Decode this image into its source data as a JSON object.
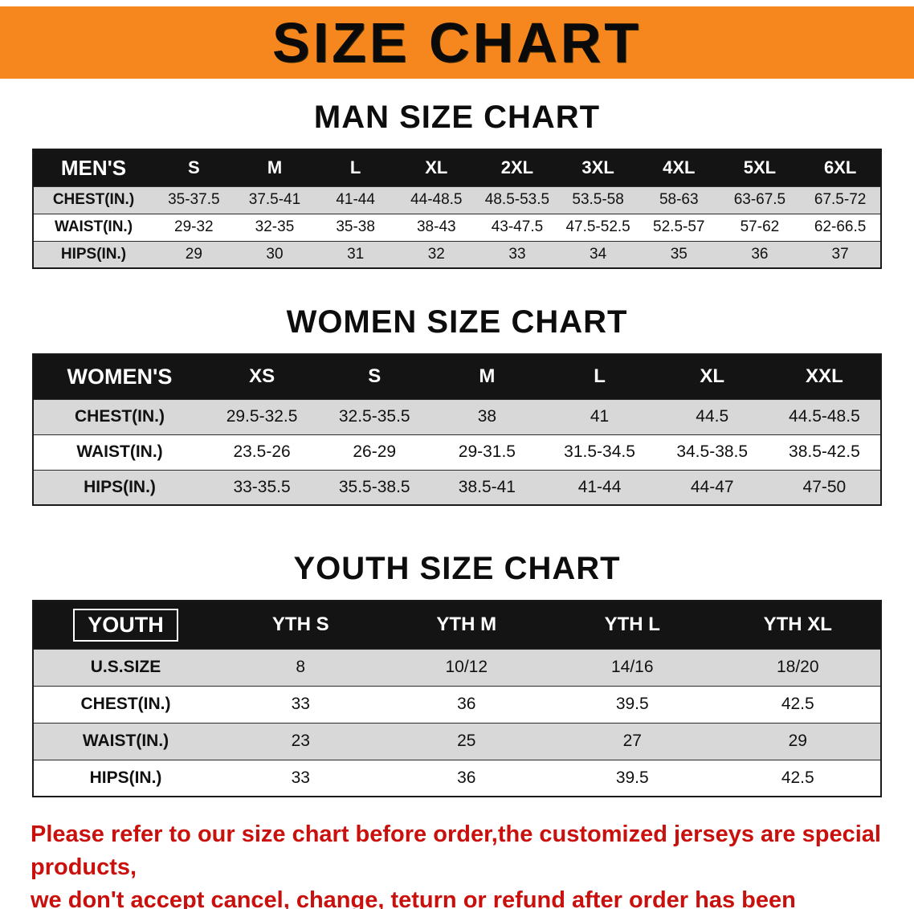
{
  "banner": {
    "title": "SIZE CHART"
  },
  "colors": {
    "banner_bg": "#f6871f",
    "header_bg": "#141414",
    "row_alt": "#d8d8d8",
    "disclaimer_text": "#c9100d"
  },
  "sections": [
    {
      "heading": "MAN SIZE CHART",
      "table": {
        "corner": "MEN'S",
        "columns": [
          "S",
          "M",
          "L",
          "XL",
          "2XL",
          "3XL",
          "4XL",
          "5XL",
          "6XL"
        ],
        "rows": [
          {
            "label": "CHEST(IN.)",
            "values": [
              "35-37.5",
              "37.5-41",
              "41-44",
              "44-48.5",
              "48.5-53.5",
              "53.5-58",
              "58-63",
              "63-67.5",
              "67.5-72"
            ]
          },
          {
            "label": "WAIST(IN.)",
            "values": [
              "29-32",
              "32-35",
              "35-38",
              "38-43",
              "43-47.5",
              "47.5-52.5",
              "52.5-57",
              "57-62",
              "62-66.5"
            ]
          },
          {
            "label": "HIPS(IN.)",
            "values": [
              "29",
              "30",
              "31",
              "32",
              "33",
              "34",
              "35",
              "36",
              "37"
            ]
          }
        ]
      }
    },
    {
      "heading": "WOMEN SIZE CHART",
      "table": {
        "corner": "WOMEN'S",
        "columns": [
          "XS",
          "S",
          "M",
          "L",
          "XL",
          "XXL"
        ],
        "rows": [
          {
            "label": "CHEST(IN.)",
            "values": [
              "29.5-32.5",
              "32.5-35.5",
              "38",
              "41",
              "44.5",
              "44.5-48.5"
            ]
          },
          {
            "label": "WAIST(IN.)",
            "values": [
              "23.5-26",
              "26-29",
              "29-31.5",
              "31.5-34.5",
              "34.5-38.5",
              "38.5-42.5"
            ]
          },
          {
            "label": "HIPS(IN.)",
            "values": [
              "33-35.5",
              "35.5-38.5",
              "38.5-41",
              "41-44",
              "44-47",
              "47-50"
            ]
          }
        ]
      }
    },
    {
      "heading": "YOUTH SIZE CHART",
      "table": {
        "corner": "YOUTH",
        "columns": [
          "YTH S",
          "YTH M",
          "YTH L",
          "YTH XL"
        ],
        "rows": [
          {
            "label": "U.S.SIZE",
            "values": [
              "8",
              "10/12",
              "14/16",
              "18/20"
            ]
          },
          {
            "label": "CHEST(IN.)",
            "values": [
              "33",
              "36",
              "39.5",
              "42.5"
            ]
          },
          {
            "label": "WAIST(IN.)",
            "values": [
              "23",
              "25",
              "27",
              "29"
            ]
          },
          {
            "label": "HIPS(IN.)",
            "values": [
              "33",
              "36",
              "39.5",
              "42.5"
            ]
          }
        ]
      }
    }
  ],
  "disclaimer": {
    "line1": "Please refer to our size chart before order,the customized jerseys are special products,",
    "line2": "we don't accept cancel, change, teturn or refund after order has been placed!"
  }
}
